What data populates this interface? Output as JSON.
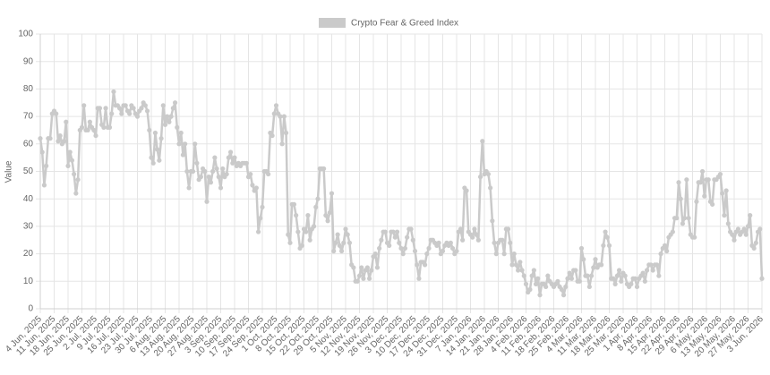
{
  "chart_data": {
    "type": "line",
    "y_label": "Value",
    "ylim": [
      0,
      100
    ],
    "yticks": [
      0,
      10,
      20,
      30,
      40,
      50,
      60,
      70,
      80,
      90,
      100
    ],
    "grid": true,
    "categories": [
      "4 Jun, 2025",
      null,
      null,
      null,
      null,
      null,
      null,
      "11 Jun, 2025",
      null,
      null,
      null,
      null,
      null,
      null,
      "18 Jun, 2025",
      null,
      null,
      null,
      null,
      null,
      null,
      "25 Jun, 2025",
      null,
      null,
      null,
      null,
      null,
      null,
      "2 Jul, 2025",
      null,
      null,
      null,
      null,
      null,
      null,
      "9 Jul, 2025",
      null,
      null,
      null,
      null,
      null,
      null,
      "16 Jul, 2025",
      null,
      null,
      null,
      null,
      null,
      null,
      "23 Jul, 2025",
      null,
      null,
      null,
      null,
      null,
      null,
      "30 Jul, 2025",
      null,
      null,
      null,
      null,
      null,
      null,
      "6 Aug, 2025",
      null,
      null,
      null,
      null,
      null,
      null,
      "13 Aug, 2025",
      null,
      null,
      null,
      null,
      null,
      null,
      "20 Aug, 2025",
      null,
      null,
      null,
      null,
      null,
      null,
      "27 Aug, 2025",
      null,
      null,
      null,
      null,
      null,
      null,
      "3 Sep, 2025",
      null,
      null,
      null,
      null,
      null,
      null,
      "10 Sep, 2025",
      null,
      null,
      null,
      null,
      null,
      null,
      "17 Sep, 2025",
      null,
      null,
      null,
      null,
      null,
      null,
      "24 Sep, 2025",
      null,
      null,
      null,
      null,
      null,
      null,
      "1 Oct, 2025",
      null,
      null,
      null,
      null,
      null,
      null,
      "8 Oct, 2025",
      null,
      null,
      null,
      null,
      null,
      null,
      "15 Oct, 2025",
      null,
      null,
      null,
      null,
      null,
      null,
      "22 Oct, 2025",
      null,
      null,
      null,
      null,
      null,
      null,
      "29 Oct, 2025",
      null,
      null,
      null,
      null,
      null,
      null,
      "5 Nov, 2025",
      null,
      null,
      null,
      null,
      null,
      null,
      "12 Nov, 2025",
      null,
      null,
      null,
      null,
      null,
      null,
      "19 Nov, 2025",
      null,
      null,
      null,
      null,
      null,
      null,
      "26 Nov, 2025",
      null,
      null,
      null,
      null,
      null,
      null,
      "3 Dec, 2025",
      null,
      null,
      null,
      null,
      null,
      null,
      "10 Dec, 2025",
      null,
      null,
      null,
      null,
      null,
      null,
      "17 Dec, 2025",
      null,
      null,
      null,
      null,
      null,
      null,
      "24 Dec, 2025",
      null,
      null,
      null,
      null,
      null,
      null,
      "31 Dec, 2025",
      null,
      null,
      null,
      null,
      null,
      null,
      "7 Jan, 2026",
      null,
      null,
      null,
      null,
      null,
      null,
      "14 Jan, 2026",
      null,
      null,
      null,
      null,
      null,
      null,
      "21 Jan, 2026",
      null,
      null,
      null,
      null,
      null,
      null,
      "28 Jan, 2026",
      null,
      null,
      null,
      null,
      null,
      null,
      "4 Feb, 2026",
      null,
      null,
      null,
      null,
      null,
      null,
      "11 Feb, 2026",
      null,
      null,
      null,
      null,
      null,
      null,
      "18 Feb, 2026",
      null,
      null,
      null,
      null,
      null,
      null,
      "25 Feb, 2026",
      null,
      null,
      null,
      null,
      null,
      null,
      "4 Mar, 2026",
      null,
      null,
      null,
      null,
      null,
      null,
      "11 Mar, 2026",
      null,
      null,
      null,
      null,
      null,
      null,
      "18 Mar, 2026",
      null,
      null,
      null,
      null,
      null,
      null,
      "25 Mar, 2026",
      null,
      null,
      null,
      null,
      null,
      null,
      "1 Apr, 2026",
      null,
      null,
      null,
      null,
      null,
      null,
      "8 Apr, 2026",
      null,
      null,
      null,
      null,
      null,
      null,
      "15 Apr, 2026",
      null,
      null,
      null,
      null,
      null,
      null,
      "22 Apr, 2026",
      null,
      null,
      null,
      null,
      null,
      null,
      "29 Apr, 2026",
      null,
      null,
      null,
      null,
      null,
      null,
      "6 May, 2026",
      null,
      null,
      null,
      null,
      null,
      null,
      "13 May, 2026",
      null,
      null,
      null,
      null,
      null,
      null,
      "20 May, 2026",
      null,
      null,
      null,
      null,
      null,
      null,
      "27 May, 2026",
      null,
      null,
      null,
      null,
      null,
      null,
      "3 Jun, 2026"
    ],
    "series": [
      {
        "name": "Crypto Fear & Greed Index",
        "color": "#cacaca",
        "values": [
          62,
          57,
          45,
          52,
          62,
          62,
          71,
          72,
          71,
          61,
          63,
          60,
          61,
          68,
          52,
          57,
          54,
          49,
          42,
          47,
          65,
          66,
          74,
          65,
          65,
          68,
          66,
          65,
          63,
          73,
          73,
          67,
          66,
          73,
          66,
          66,
          71,
          79,
          74,
          74,
          73,
          71,
          74,
          74,
          72,
          71,
          74,
          73,
          71,
          70,
          72,
          73,
          75,
          74,
          72,
          65,
          55,
          53,
          64,
          58,
          54,
          62,
          74,
          67,
          70,
          68,
          70,
          73,
          75,
          66,
          60,
          64,
          56,
          60,
          50,
          44,
          50,
          50,
          60,
          53,
          47,
          48,
          51,
          50,
          39,
          48,
          46,
          50,
          55,
          51,
          48,
          44,
          51,
          48,
          49,
          55,
          57,
          53,
          55,
          52,
          53,
          52,
          53,
          53,
          53,
          48,
          49,
          45,
          43,
          44,
          28,
          33,
          37,
          50,
          50,
          49,
          64,
          63,
          71,
          74,
          71,
          70,
          60,
          70,
          64,
          27,
          24,
          38,
          38,
          34,
          28,
          22,
          23,
          29,
          28,
          34,
          25,
          29,
          30,
          37,
          40,
          51,
          51,
          51,
          34,
          32,
          35,
          42,
          21,
          24,
          27,
          23,
          21,
          24,
          29,
          27,
          24,
          16,
          15,
          10,
          10,
          12,
          15,
          11,
          14,
          15,
          11,
          14,
          19,
          20,
          15,
          22,
          25,
          28,
          28,
          24,
          23,
          28,
          28,
          26,
          28,
          24,
          22,
          20,
          22,
          26,
          29,
          29,
          25,
          21,
          16,
          11,
          17,
          17,
          16,
          20,
          22,
          25,
          25,
          24,
          23,
          24,
          20,
          21,
          23,
          24,
          23,
          24,
          22,
          20,
          21,
          28,
          29,
          25,
          44,
          43,
          28,
          27,
          26,
          29,
          27,
          25,
          48,
          61,
          49,
          50,
          49,
          44,
          32,
          24,
          20,
          24,
          25,
          25,
          20,
          29,
          29,
          24,
          16,
          20,
          16,
          14,
          17,
          14,
          12,
          9,
          6,
          7,
          12,
          14,
          9,
          11,
          5,
          9,
          9,
          8,
          12,
          10,
          9,
          8,
          9,
          10,
          8,
          7,
          5,
          8,
          11,
          13,
          11,
          14,
          14,
          10,
          10,
          22,
          18,
          12,
          12,
          8,
          12,
          15,
          18,
          15,
          16,
          16,
          23,
          28,
          26,
          23,
          11,
          11,
          9,
          12,
          14,
          10,
          13,
          12,
          9,
          8,
          9,
          11,
          11,
          8,
          11,
          12,
          13,
          10,
          14,
          16,
          16,
          14,
          16,
          16,
          12,
          20,
          22,
          23,
          21,
          26,
          27,
          28,
          33,
          33,
          46,
          40,
          31,
          33,
          47,
          33,
          27,
          26,
          26,
          39,
          46,
          46,
          50,
          41,
          47,
          47,
          39,
          38,
          47,
          47,
          48,
          49,
          42,
          34,
          43,
          31,
          28,
          27,
          25,
          28,
          29,
          27,
          28,
          29,
          27,
          30,
          34,
          23,
          22,
          24,
          28,
          29,
          11
        ]
      }
    ]
  }
}
